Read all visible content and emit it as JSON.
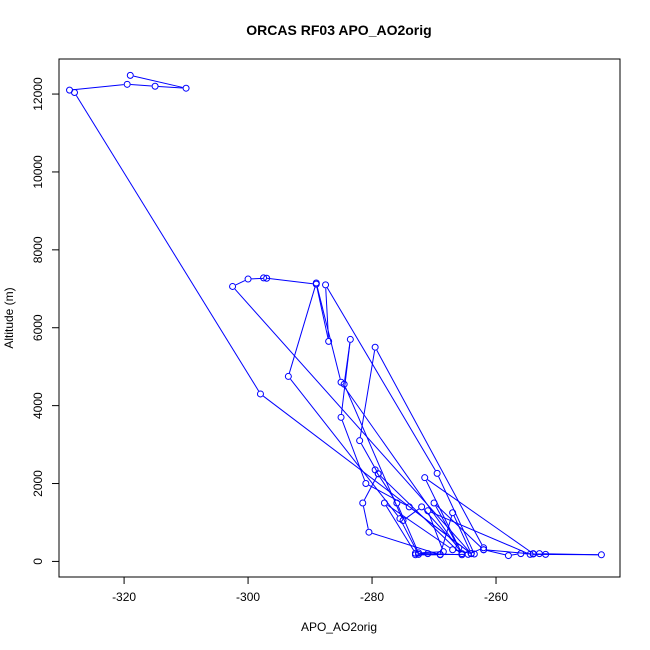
{
  "chart_data": {
    "type": "line",
    "title": "ORCAS RF03 APO_AO2orig",
    "xlabel": "APO_AO2orig",
    "ylabel": "Altitude (m)",
    "xlim": [
      -330.5,
      -240
    ],
    "ylim": [
      -400,
      12900
    ],
    "xticks": [
      -320,
      -300,
      -280,
      -260
    ],
    "yticks": [
      0,
      2000,
      4000,
      6000,
      8000,
      10000,
      12000
    ],
    "grid": false,
    "legend": "none",
    "line_color": "#0000ff",
    "marker": "open-circle",
    "series": [
      {
        "points": [
          [
            -319,
            12480
          ],
          [
            -310,
            12150
          ],
          [
            -315,
            12200
          ],
          [
            -319.5,
            12250
          ],
          [
            -328.8,
            12100
          ],
          [
            -328,
            12040
          ],
          [
            -298,
            4300
          ],
          [
            -264,
            200
          ],
          [
            -274,
            1400
          ],
          [
            -281,
            2000
          ],
          [
            -285,
            3700
          ],
          [
            -283.5,
            5700
          ],
          [
            -284.5,
            4550
          ],
          [
            -275,
            1050
          ],
          [
            -272,
            1400
          ],
          [
            -266,
            350
          ],
          [
            -270,
            1500
          ],
          [
            -262,
            300
          ],
          [
            -254,
            190
          ],
          [
            -253,
            200
          ],
          [
            -243,
            170
          ],
          [
            -254.5,
            180
          ],
          [
            -271,
            1300
          ],
          [
            -268.5,
            250
          ],
          [
            -272.5,
            220
          ],
          [
            -276,
            1500
          ],
          [
            -279.5,
            2350
          ],
          [
            -279,
            2250
          ],
          [
            -281.5,
            1500
          ],
          [
            -280.5,
            750
          ],
          [
            -269,
            170
          ],
          [
            -273,
            170
          ],
          [
            -264.5,
            180
          ],
          [
            -262,
            350
          ],
          [
            -279.5,
            5500
          ],
          [
            -282,
            3100
          ],
          [
            -279,
            2250
          ],
          [
            -265.5,
            170
          ],
          [
            -273,
            210
          ],
          [
            -278,
            1500
          ],
          [
            -267,
            300
          ],
          [
            -263.5,
            190
          ],
          [
            -269.5,
            2260
          ],
          [
            -287.5,
            7100
          ],
          [
            -287,
            5650
          ],
          [
            -289,
            7120
          ],
          [
            -297.5,
            7280
          ],
          [
            -297,
            7270
          ],
          [
            -300,
            7250
          ],
          [
            -302.5,
            7060
          ],
          [
            -264,
            200
          ],
          [
            -267,
            1250
          ],
          [
            -269,
            180
          ],
          [
            -271,
            200
          ],
          [
            -272.5,
            180
          ],
          [
            -275.5,
            1100
          ],
          [
            -293.5,
            4750
          ],
          [
            -289,
            7150
          ],
          [
            -285,
            4600
          ],
          [
            -265.5,
            200
          ],
          [
            -271.5,
            2150
          ],
          [
            -254,
            200
          ],
          [
            -252,
            180
          ],
          [
            -256,
            200
          ],
          [
            -258,
            150
          ],
          [
            -262,
            300
          ]
        ]
      }
    ]
  }
}
